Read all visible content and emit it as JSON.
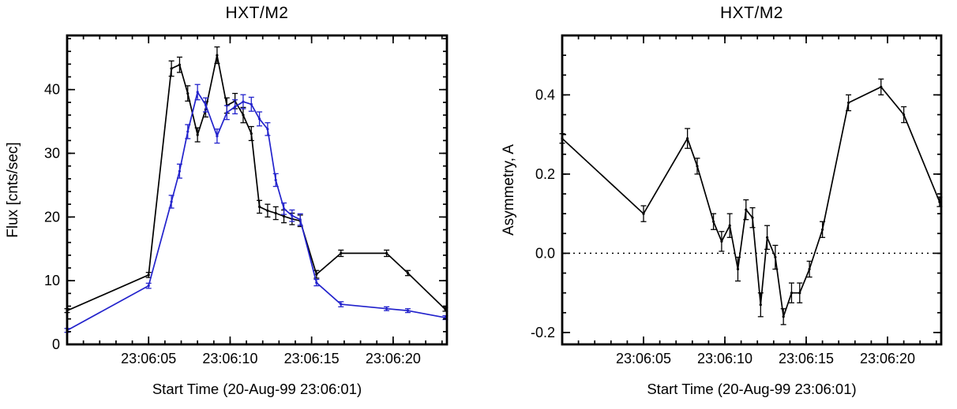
{
  "chart_data": [
    {
      "type": "line",
      "title": "HXT/M2",
      "xlabel": "Start Time (20-Aug-99 23:06:01)",
      "ylabel": "Flux [cnts/sec]",
      "x_unit": "seconds after 23:06:00",
      "xlim": [
        0,
        23.3
      ],
      "ylim": [
        0,
        48.5
      ],
      "grid": false,
      "legend_position": "none",
      "x_ticks": [
        {
          "value": 5,
          "label": "23:06:05"
        },
        {
          "value": 10,
          "label": "23:06:10"
        },
        {
          "value": 15,
          "label": "23:06:15"
        },
        {
          "value": 20,
          "label": "23:06:20"
        }
      ],
      "x_minor": 1,
      "y_ticks": [
        {
          "value": 0,
          "label": "0"
        },
        {
          "value": 10,
          "label": "10"
        },
        {
          "value": 20,
          "label": "20"
        },
        {
          "value": 30,
          "label": "30"
        },
        {
          "value": 40,
          "label": "40"
        }
      ],
      "y_minor": 2,
      "zero_line": false,
      "series": [
        {
          "name": "flux-black",
          "color": "#000000",
          "x": [
            0,
            5,
            6.4,
            6.9,
            7.4,
            8.0,
            8.5,
            9.2,
            9.8,
            10.3,
            10.8,
            11.3,
            11.8,
            12.3,
            12.8,
            13.3,
            13.8,
            14.3,
            15.3,
            16.8,
            19.6,
            20.9,
            23.2
          ],
          "y": [
            5.3,
            10.9,
            43.3,
            43.9,
            39.4,
            32.9,
            36.9,
            45.4,
            37.5,
            38.2,
            36.0,
            33.1,
            21.6,
            21.0,
            20.6,
            20.1,
            19.7,
            19.4,
            11.0,
            14.3,
            14.3,
            11.2,
            5.5
          ],
          "yerr": [
            0.3,
            0.4,
            1.2,
            1.2,
            1.2,
            1.1,
            1.2,
            1.3,
            1.2,
            1.2,
            1.2,
            1.1,
            1.0,
            1.0,
            1.0,
            1.0,
            0.9,
            0.9,
            0.6,
            0.5,
            0.5,
            0.4,
            0.3
          ]
        },
        {
          "name": "flux-blue",
          "color": "#2222cc",
          "x": [
            0,
            5,
            6.4,
            6.9,
            7.4,
            8.0,
            8.5,
            9.2,
            9.8,
            10.3,
            10.8,
            11.3,
            11.8,
            12.3,
            12.8,
            13.3,
            13.8,
            14.3,
            15.3,
            16.8,
            19.6,
            20.9,
            23.2
          ],
          "y": [
            2.2,
            9.2,
            22.4,
            27.2,
            33.4,
            39.6,
            37.6,
            32.7,
            36.4,
            37.3,
            38.1,
            37.7,
            35.4,
            33.8,
            25.8,
            21.3,
            20.2,
            19.6,
            9.7,
            6.3,
            5.6,
            5.3,
            4.2
          ],
          "yerr": [
            0.3,
            0.4,
            1.0,
            1.1,
            1.1,
            1.2,
            1.1,
            1.1,
            1.1,
            1.1,
            1.1,
            1.1,
            1.1,
            1.0,
            1.0,
            0.9,
            0.9,
            0.9,
            0.5,
            0.4,
            0.3,
            0.3,
            0.3
          ]
        }
      ]
    },
    {
      "type": "line",
      "title": "HXT/M2",
      "xlabel": "Start Time (20-Aug-99 23:06:01)",
      "ylabel": "Asymmetry, A",
      "x_unit": "seconds after 23:06:00",
      "xlim": [
        0,
        23.3
      ],
      "ylim": [
        -0.23,
        0.55
      ],
      "grid": false,
      "legend_position": "none",
      "x_ticks": [
        {
          "value": 5,
          "label": "23:06:05"
        },
        {
          "value": 10,
          "label": "23:06:10"
        },
        {
          "value": 15,
          "label": "23:06:15"
        },
        {
          "value": 20,
          "label": "23:06:20"
        }
      ],
      "x_minor": 1,
      "y_ticks": [
        {
          "value": -0.2,
          "label": "-0.2"
        },
        {
          "value": 0.0,
          "label": "0.0"
        },
        {
          "value": 0.2,
          "label": "0.2"
        },
        {
          "value": 0.4,
          "label": "0.4"
        }
      ],
      "y_minor": 0.05,
      "zero_line": true,
      "series": [
        {
          "name": "asymmetry",
          "color": "#000000",
          "x": [
            0,
            5,
            7.7,
            8.3,
            9.3,
            9.8,
            10.3,
            10.8,
            11.3,
            11.7,
            12.2,
            12.6,
            13.1,
            13.6,
            14.1,
            14.6,
            15.2,
            16.0,
            17.6,
            19.6,
            21.0,
            23.2
          ],
          "y": [
            0.29,
            0.1,
            0.29,
            0.22,
            0.08,
            0.03,
            0.07,
            -0.04,
            0.11,
            0.09,
            -0.13,
            0.04,
            -0.01,
            -0.16,
            -0.1,
            -0.1,
            -0.04,
            0.06,
            0.38,
            0.42,
            0.35,
            0.13
          ],
          "yerr": [
            0.012,
            0.02,
            0.025,
            0.02,
            0.02,
            0.025,
            0.03,
            0.03,
            0.025,
            0.025,
            0.03,
            0.03,
            0.03,
            0.02,
            0.025,
            0.025,
            0.02,
            0.02,
            0.02,
            0.02,
            0.02,
            0.012
          ]
        }
      ]
    }
  ],
  "frame_color": "#000000"
}
